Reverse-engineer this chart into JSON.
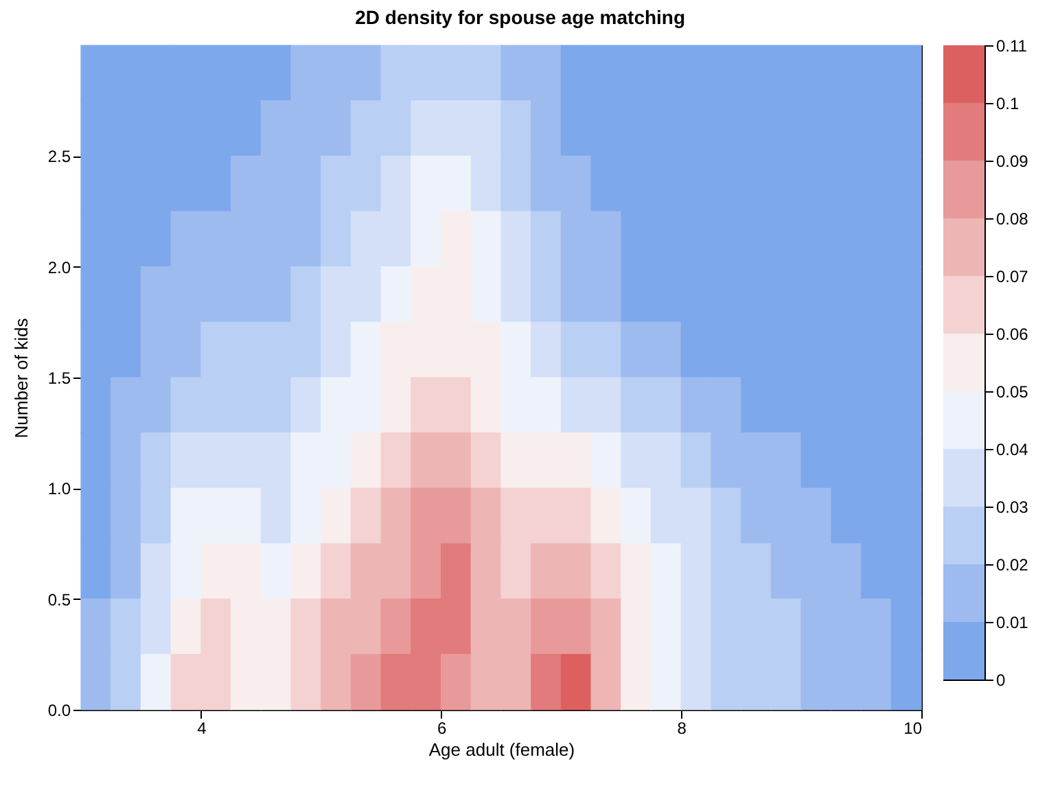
{
  "chart_data": {
    "type": "scatter",
    "marker": "square",
    "title": "2D density for spouse age matching",
    "xlabel": "Age adult (female)",
    "ylabel": "Number of kids",
    "x": [
      3.125,
      3.375,
      3.625,
      3.875,
      4.125,
      4.375,
      4.625,
      4.875,
      5.125,
      5.375,
      5.625,
      5.875,
      6.125,
      6.375,
      6.625,
      6.875,
      7.125,
      7.375,
      7.625,
      7.875,
      8.125,
      8.375,
      8.625,
      8.875,
      9.125,
      9.375,
      9.625,
      9.875,
      3.125,
      3.375,
      3.625,
      3.875,
      4.125,
      4.375,
      4.625,
      4.875,
      5.125,
      5.375,
      5.625,
      5.875,
      6.125,
      6.375,
      6.625,
      6.875,
      7.125,
      7.375,
      7.625,
      7.875,
      8.125,
      8.375,
      8.625,
      8.875,
      9.125,
      9.375,
      9.625,
      9.875,
      3.125,
      3.375,
      3.625,
      3.875,
      4.125,
      4.375,
      4.625,
      4.875,
      5.125,
      5.375,
      5.625,
      5.875,
      6.125,
      6.375,
      6.625,
      6.875,
      7.125,
      7.375,
      7.625,
      7.875,
      8.125,
      8.375,
      8.625,
      8.875,
      9.125,
      9.375,
      9.625,
      9.875,
      3.125,
      3.375,
      3.625,
      3.875,
      4.125,
      4.375,
      4.625,
      4.875,
      5.125,
      5.375,
      5.625,
      5.875,
      6.125,
      6.375,
      6.625,
      6.875,
      7.125,
      7.375,
      7.625,
      7.875,
      8.125,
      8.375,
      8.625,
      8.875,
      9.125,
      9.375,
      9.625,
      9.875,
      3.125,
      3.375,
      3.625,
      3.875,
      4.125,
      4.375,
      4.625,
      4.875,
      5.125,
      5.375,
      5.625,
      5.875,
      6.125,
      6.375,
      6.625,
      6.875,
      7.125,
      7.375,
      7.625,
      7.875,
      8.125,
      8.375,
      8.625,
      8.875,
      9.125,
      9.375,
      9.625,
      9.875,
      3.125,
      3.375,
      3.625,
      3.875,
      4.125,
      4.375,
      4.625,
      4.875,
      5.125,
      5.375,
      5.625,
      5.875,
      6.125,
      6.375,
      6.625,
      6.875,
      7.125,
      7.375,
      7.625,
      7.875,
      8.125,
      8.375,
      8.625,
      8.875,
      9.125,
      9.375,
      9.625,
      9.875,
      3.125,
      3.375,
      3.625,
      3.875,
      4.125,
      4.375,
      4.625,
      4.875,
      5.125,
      5.375,
      5.625,
      5.875,
      6.125,
      6.375,
      6.625,
      6.875,
      7.125,
      7.375,
      7.625,
      7.875,
      8.125,
      8.375,
      8.625,
      8.875,
      9.125,
      9.375,
      9.625,
      9.875,
      3.125,
      3.375,
      3.625,
      3.875,
      4.125,
      4.375,
      4.625,
      4.875,
      5.125,
      5.375,
      5.625,
      5.875,
      6.125,
      6.375,
      6.625,
      6.875,
      7.125,
      7.375,
      7.625,
      7.875,
      8.125,
      8.375,
      8.625,
      8.875,
      9.125,
      9.375,
      9.625,
      9.875,
      3.125,
      3.375,
      3.625,
      3.875,
      4.125,
      4.375,
      4.625,
      4.875,
      5.125,
      5.375,
      5.625,
      5.875,
      6.125,
      6.375,
      6.625,
      6.875,
      7.125,
      7.375,
      7.625,
      7.875,
      8.125,
      8.375,
      8.625,
      8.875,
      9.125,
      9.375,
      9.625,
      9.875,
      3.125,
      3.375,
      3.625,
      3.875,
      4.125,
      4.375,
      4.625,
      4.875,
      5.125,
      5.375,
      5.625,
      5.875,
      6.125,
      6.375,
      6.625,
      6.875,
      7.125,
      7.375,
      7.625,
      7.875,
      8.125,
      8.375,
      8.625,
      8.875,
      9.125,
      9.375,
      9.625,
      9.875,
      3.125,
      3.375,
      3.625,
      3.875,
      4.125,
      4.375,
      4.625,
      4.875,
      5.125,
      5.375,
      5.625,
      5.875,
      6.125,
      6.375,
      6.625,
      6.875,
      7.125,
      7.375,
      7.625,
      7.875,
      8.125,
      8.375,
      8.625,
      8.875,
      9.125,
      9.375,
      9.625,
      9.875,
      3.125,
      3.375,
      3.625,
      3.875,
      4.125,
      4.375,
      4.625,
      4.875,
      5.125,
      5.375,
      5.625,
      5.875,
      6.125,
      6.375,
      6.625,
      6.875,
      7.125,
      7.375,
      7.625,
      7.875,
      8.125,
      8.375,
      8.625,
      8.875,
      9.125,
      9.375,
      9.625,
      9.875
    ],
    "values": [
      2.875,
      2.875,
      2.875,
      2.875,
      2.875,
      2.875,
      2.875,
      2.875,
      2.875,
      2.875,
      2.875,
      2.875,
      2.875,
      2.875,
      2.875,
      2.875,
      2.875,
      2.875,
      2.875,
      2.875,
      2.875,
      2.875,
      2.875,
      2.875,
      2.875,
      2.875,
      2.875,
      2.875,
      2.625,
      2.625,
      2.625,
      2.625,
      2.625,
      2.625,
      2.625,
      2.625,
      2.625,
      2.625,
      2.625,
      2.625,
      2.625,
      2.625,
      2.625,
      2.625,
      2.625,
      2.625,
      2.625,
      2.625,
      2.625,
      2.625,
      2.625,
      2.625,
      2.625,
      2.625,
      2.625,
      2.625,
      2.375,
      2.375,
      2.375,
      2.375,
      2.375,
      2.375,
      2.375,
      2.375,
      2.375,
      2.375,
      2.375,
      2.375,
      2.375,
      2.375,
      2.375,
      2.375,
      2.375,
      2.375,
      2.375,
      2.375,
      2.375,
      2.375,
      2.375,
      2.375,
      2.375,
      2.375,
      2.375,
      2.375,
      2.125,
      2.125,
      2.125,
      2.125,
      2.125,
      2.125,
      2.125,
      2.125,
      2.125,
      2.125,
      2.125,
      2.125,
      2.125,
      2.125,
      2.125,
      2.125,
      2.125,
      2.125,
      2.125,
      2.125,
      2.125,
      2.125,
      2.125,
      2.125,
      2.125,
      2.125,
      2.125,
      2.125,
      1.875,
      1.875,
      1.875,
      1.875,
      1.875,
      1.875,
      1.875,
      1.875,
      1.875,
      1.875,
      1.875,
      1.875,
      1.875,
      1.875,
      1.875,
      1.875,
      1.875,
      1.875,
      1.875,
      1.875,
      1.875,
      1.875,
      1.875,
      1.875,
      1.875,
      1.875,
      1.875,
      1.875,
      1.625,
      1.625,
      1.625,
      1.625,
      1.625,
      1.625,
      1.625,
      1.625,
      1.625,
      1.625,
      1.625,
      1.625,
      1.625,
      1.625,
      1.625,
      1.625,
      1.625,
      1.625,
      1.625,
      1.625,
      1.625,
      1.625,
      1.625,
      1.625,
      1.625,
      1.625,
      1.625,
      1.625,
      1.375,
      1.375,
      1.375,
      1.375,
      1.375,
      1.375,
      1.375,
      1.375,
      1.375,
      1.375,
      1.375,
      1.375,
      1.375,
      1.375,
      1.375,
      1.375,
      1.375,
      1.375,
      1.375,
      1.375,
      1.375,
      1.375,
      1.375,
      1.375,
      1.375,
      1.375,
      1.375,
      1.375,
      1.125,
      1.125,
      1.125,
      1.125,
      1.125,
      1.125,
      1.125,
      1.125,
      1.125,
      1.125,
      1.125,
      1.125,
      1.125,
      1.125,
      1.125,
      1.125,
      1.125,
      1.125,
      1.125,
      1.125,
      1.125,
      1.125,
      1.125,
      1.125,
      1.125,
      1.125,
      1.125,
      1.125,
      0.875,
      0.875,
      0.875,
      0.875,
      0.875,
      0.875,
      0.875,
      0.875,
      0.875,
      0.875,
      0.875,
      0.875,
      0.875,
      0.875,
      0.875,
      0.875,
      0.875,
      0.875,
      0.875,
      0.875,
      0.875,
      0.875,
      0.875,
      0.875,
      0.875,
      0.875,
      0.875,
      0.875,
      0.625,
      0.625,
      0.625,
      0.625,
      0.625,
      0.625,
      0.625,
      0.625,
      0.625,
      0.625,
      0.625,
      0.625,
      0.625,
      0.625,
      0.625,
      0.625,
      0.625,
      0.625,
      0.625,
      0.625,
      0.625,
      0.625,
      0.625,
      0.625,
      0.625,
      0.625,
      0.625,
      0.625,
      0.375,
      0.375,
      0.375,
      0.375,
      0.375,
      0.375,
      0.375,
      0.375,
      0.375,
      0.375,
      0.375,
      0.375,
      0.375,
      0.375,
      0.375,
      0.375,
      0.375,
      0.375,
      0.375,
      0.375,
      0.375,
      0.375,
      0.375,
      0.375,
      0.375,
      0.375,
      0.375,
      0.375,
      0.125,
      0.125,
      0.125,
      0.125,
      0.125,
      0.125,
      0.125,
      0.125,
      0.125,
      0.125,
      0.125,
      0.125,
      0.125,
      0.125,
      0.125,
      0.125,
      0.125,
      0.125,
      0.125,
      0.125,
      0.125,
      0.125,
      0.125,
      0.125,
      0.125,
      0.125,
      0.125,
      0.125
    ],
    "cvalues": [
      0.005,
      0.005,
      0.005,
      0.005,
      0.005,
      0.005,
      0.005,
      0.015,
      0.015,
      0.015,
      0.025,
      0.025,
      0.025,
      0.025,
      0.015,
      0.015,
      0.005,
      0.005,
      0.005,
      0.005,
      0.005,
      0.005,
      0.005,
      0.005,
      0.005,
      0.005,
      0.005,
      0.005,
      0.005,
      0.005,
      0.005,
      0.005,
      0.005,
      0.005,
      0.015,
      0.015,
      0.015,
      0.025,
      0.025,
      0.035,
      0.035,
      0.035,
      0.025,
      0.015,
      0.005,
      0.005,
      0.005,
      0.005,
      0.005,
      0.005,
      0.005,
      0.005,
      0.005,
      0.005,
      0.005,
      0.005,
      0.005,
      0.005,
      0.005,
      0.005,
      0.005,
      0.015,
      0.015,
      0.015,
      0.025,
      0.025,
      0.035,
      0.045,
      0.045,
      0.035,
      0.025,
      0.015,
      0.015,
      0.005,
      0.005,
      0.005,
      0.005,
      0.005,
      0.005,
      0.005,
      0.005,
      0.005,
      0.005,
      0.005,
      0.005,
      0.005,
      0.005,
      0.015,
      0.015,
      0.015,
      0.015,
      0.015,
      0.025,
      0.035,
      0.035,
      0.045,
      0.055,
      0.045,
      0.035,
      0.025,
      0.015,
      0.015,
      0.005,
      0.005,
      0.005,
      0.005,
      0.005,
      0.005,
      0.005,
      0.005,
      0.005,
      0.005,
      0.005,
      0.005,
      0.015,
      0.015,
      0.015,
      0.015,
      0.015,
      0.025,
      0.035,
      0.035,
      0.045,
      0.055,
      0.055,
      0.045,
      0.035,
      0.025,
      0.015,
      0.015,
      0.005,
      0.005,
      0.005,
      0.005,
      0.005,
      0.005,
      0.005,
      0.005,
      0.005,
      0.005,
      0.005,
      0.005,
      0.015,
      0.015,
      0.025,
      0.025,
      0.025,
      0.025,
      0.035,
      0.045,
      0.055,
      0.055,
      0.055,
      0.055,
      0.045,
      0.035,
      0.025,
      0.025,
      0.015,
      0.015,
      0.005,
      0.005,
      0.005,
      0.005,
      0.005,
      0.005,
      0.005,
      0.005,
      0.005,
      0.015,
      0.015,
      0.025,
      0.025,
      0.025,
      0.025,
      0.035,
      0.045,
      0.045,
      0.055,
      0.065,
      0.065,
      0.055,
      0.045,
      0.045,
      0.035,
      0.035,
      0.025,
      0.025,
      0.015,
      0.015,
      0.005,
      0.005,
      0.005,
      0.005,
      0.005,
      0.005,
      0.005,
      0.015,
      0.025,
      0.035,
      0.035,
      0.035,
      0.035,
      0.045,
      0.045,
      0.055,
      0.065,
      0.075,
      0.075,
      0.065,
      0.055,
      0.055,
      0.055,
      0.045,
      0.035,
      0.035,
      0.025,
      0.015,
      0.015,
      0.015,
      0.005,
      0.005,
      0.005,
      0.005,
      0.005,
      0.015,
      0.025,
      0.045,
      0.045,
      0.045,
      0.035,
      0.045,
      0.055,
      0.065,
      0.075,
      0.085,
      0.085,
      0.075,
      0.065,
      0.065,
      0.065,
      0.055,
      0.045,
      0.035,
      0.035,
      0.025,
      0.015,
      0.015,
      0.015,
      0.005,
      0.005,
      0.005,
      0.005,
      0.015,
      0.035,
      0.045,
      0.055,
      0.055,
      0.045,
      0.055,
      0.065,
      0.075,
      0.075,
      0.085,
      0.095,
      0.075,
      0.065,
      0.075,
      0.075,
      0.065,
      0.055,
      0.045,
      0.035,
      0.025,
      0.025,
      0.015,
      0.015,
      0.015,
      0.005,
      0.005,
      0.015,
      0.025,
      0.035,
      0.055,
      0.065,
      0.055,
      0.055,
      0.065,
      0.075,
      0.075,
      0.085,
      0.095,
      0.095,
      0.075,
      0.075,
      0.085,
      0.085,
      0.075,
      0.055,
      0.045,
      0.035,
      0.025,
      0.025,
      0.025,
      0.015,
      0.015,
      0.015,
      0.005,
      0.015,
      0.025,
      0.045,
      0.065,
      0.065,
      0.055,
      0.055,
      0.065,
      0.075,
      0.085,
      0.095,
      0.095,
      0.085,
      0.075,
      0.075,
      0.095,
      0.105,
      0.075,
      0.055,
      0.045,
      0.035,
      0.025,
      0.025,
      0.025,
      0.015,
      0.015,
      0.015,
      0.005
    ],
    "xlim": [
      3,
      10
    ],
    "xticks": [
      4,
      6,
      8,
      10
    ],
    "ylim": [
      0,
      3
    ],
    "yticks": [
      {
        "value": 0,
        "label": "0.0"
      },
      {
        "value": 0.5,
        "label": "0.5"
      },
      {
        "value": 1,
        "label": "1.0"
      },
      {
        "value": 1.5,
        "label": "1.5"
      },
      {
        "value": 2,
        "label": "2.0"
      },
      {
        "value": 2.5,
        "label": "2.5"
      }
    ],
    "clim": [
      0,
      0.11
    ],
    "cticks": [
      0,
      0.01,
      0.02,
      0.03,
      0.04,
      0.05,
      0.06,
      0.07,
      0.08,
      0.09,
      0.1,
      0.11
    ],
    "colors": [
      "#7ea8ec",
      "#7ea8ec",
      "#7ea8ec",
      "#7ea8ec",
      "#7ea8ec",
      "#7ea8ec",
      "#7ea8ec",
      "#9dbbef",
      "#9dbbef",
      "#9dbbef",
      "#b9cff3",
      "#b9cff3",
      "#b9cff3",
      "#b9cff3",
      "#9dbbef",
      "#9dbbef",
      "#7ea8ec",
      "#7ea8ec",
      "#7ea8ec",
      "#7ea8ec",
      "#7ea8ec",
      "#7ea8ec",
      "#7ea8ec",
      "#7ea8ec",
      "#7ea8ec",
      "#7ea8ec",
      "#7ea8ec",
      "#7ea8ec",
      "#7ea8ec",
      "#7ea8ec",
      "#7ea8ec",
      "#7ea8ec",
      "#7ea8ec",
      "#7ea8ec",
      "#9dbbef",
      "#9dbbef",
      "#9dbbef",
      "#b9cff3",
      "#b9cff3",
      "#d3e0f7",
      "#d3e0f7",
      "#d3e0f7",
      "#b9cff3",
      "#9dbbef",
      "#7ea8ec",
      "#7ea8ec",
      "#7ea8ec",
      "#7ea8ec",
      "#7ea8ec",
      "#7ea8ec",
      "#7ea8ec",
      "#7ea8ec",
      "#7ea8ec",
      "#7ea8ec",
      "#7ea8ec",
      "#7ea8ec",
      "#7ea8ec",
      "#7ea8ec",
      "#7ea8ec",
      "#7ea8ec",
      "#7ea8ec",
      "#9dbbef",
      "#9dbbef",
      "#9dbbef",
      "#b9cff3",
      "#b9cff3",
      "#d3e0f7",
      "#eef3fb",
      "#eef3fb",
      "#d3e0f7",
      "#b9cff3",
      "#9dbbef",
      "#9dbbef",
      "#7ea8ec",
      "#7ea8ec",
      "#7ea8ec",
      "#7ea8ec",
      "#7ea8ec",
      "#7ea8ec",
      "#7ea8ec",
      "#7ea8ec",
      "#7ea8ec",
      "#7ea8ec",
      "#7ea8ec",
      "#7ea8ec",
      "#7ea8ec",
      "#7ea8ec",
      "#9dbbef",
      "#9dbbef",
      "#9dbbef",
      "#9dbbef",
      "#9dbbef",
      "#b9cff3",
      "#d3e0f7",
      "#d3e0f7",
      "#eef3fb",
      "#f8eeee",
      "#eef3fb",
      "#d3e0f7",
      "#b9cff3",
      "#9dbbef",
      "#9dbbef",
      "#7ea8ec",
      "#7ea8ec",
      "#7ea8ec",
      "#7ea8ec",
      "#7ea8ec",
      "#7ea8ec",
      "#7ea8ec",
      "#7ea8ec",
      "#7ea8ec",
      "#7ea8ec",
      "#7ea8ec",
      "#7ea8ec",
      "#9dbbef",
      "#9dbbef",
      "#9dbbef",
      "#9dbbef",
      "#9dbbef",
      "#b9cff3",
      "#d3e0f7",
      "#d3e0f7",
      "#eef3fb",
      "#f8eeee",
      "#f8eeee",
      "#eef3fb",
      "#d3e0f7",
      "#b9cff3",
      "#9dbbef",
      "#9dbbef",
      "#7ea8ec",
      "#7ea8ec",
      "#7ea8ec",
      "#7ea8ec",
      "#7ea8ec",
      "#7ea8ec",
      "#7ea8ec",
      "#7ea8ec",
      "#7ea8ec",
      "#7ea8ec",
      "#7ea8ec",
      "#7ea8ec",
      "#9dbbef",
      "#9dbbef",
      "#b9cff3",
      "#b9cff3",
      "#b9cff3",
      "#b9cff3",
      "#d3e0f7",
      "#eef3fb",
      "#f8eeee",
      "#f8eeee",
      "#f8eeee",
      "#f8eeee",
      "#eef3fb",
      "#d3e0f7",
      "#b9cff3",
      "#b9cff3",
      "#9dbbef",
      "#9dbbef",
      "#7ea8ec",
      "#7ea8ec",
      "#7ea8ec",
      "#7ea8ec",
      "#7ea8ec",
      "#7ea8ec",
      "#7ea8ec",
      "#7ea8ec",
      "#7ea8ec",
      "#9dbbef",
      "#9dbbef",
      "#b9cff3",
      "#b9cff3",
      "#b9cff3",
      "#b9cff3",
      "#d3e0f7",
      "#eef3fb",
      "#eef3fb",
      "#f8eeee",
      "#f4d2d2",
      "#f4d2d2",
      "#f8eeee",
      "#eef3fb",
      "#eef3fb",
      "#d3e0f7",
      "#d3e0f7",
      "#b9cff3",
      "#b9cff3",
      "#9dbbef",
      "#9dbbef",
      "#7ea8ec",
      "#7ea8ec",
      "#7ea8ec",
      "#7ea8ec",
      "#7ea8ec",
      "#7ea8ec",
      "#7ea8ec",
      "#9dbbef",
      "#b9cff3",
      "#d3e0f7",
      "#d3e0f7",
      "#d3e0f7",
      "#d3e0f7",
      "#eef3fb",
      "#eef3fb",
      "#f8eeee",
      "#f4d2d2",
      "#eeb5b5",
      "#eeb5b5",
      "#f4d2d2",
      "#f8eeee",
      "#f8eeee",
      "#f8eeee",
      "#eef3fb",
      "#d3e0f7",
      "#d3e0f7",
      "#b9cff3",
      "#9dbbef",
      "#9dbbef",
      "#9dbbef",
      "#7ea8ec",
      "#7ea8ec",
      "#7ea8ec",
      "#7ea8ec",
      "#7ea8ec",
      "#9dbbef",
      "#b9cff3",
      "#eef3fb",
      "#eef3fb",
      "#eef3fb",
      "#d3e0f7",
      "#eef3fb",
      "#f8eeee",
      "#f4d2d2",
      "#eeb5b5",
      "#e89a9a",
      "#e89a9a",
      "#eeb5b5",
      "#f4d2d2",
      "#f4d2d2",
      "#f4d2d2",
      "#f8eeee",
      "#eef3fb",
      "#d3e0f7",
      "#d3e0f7",
      "#b9cff3",
      "#9dbbef",
      "#9dbbef",
      "#9dbbef",
      "#7ea8ec",
      "#7ea8ec",
      "#7ea8ec",
      "#7ea8ec",
      "#9dbbef",
      "#d3e0f7",
      "#eef3fb",
      "#f8eeee",
      "#f8eeee",
      "#eef3fb",
      "#f8eeee",
      "#f4d2d2",
      "#eeb5b5",
      "#eeb5b5",
      "#e89a9a",
      "#e27b7b",
      "#eeb5b5",
      "#f4d2d2",
      "#eeb5b5",
      "#eeb5b5",
      "#f4d2d2",
      "#f8eeee",
      "#eef3fb",
      "#d3e0f7",
      "#b9cff3",
      "#b9cff3",
      "#9dbbef",
      "#9dbbef",
      "#9dbbef",
      "#7ea8ec",
      "#7ea8ec",
      "#9dbbef",
      "#b9cff3",
      "#d3e0f7",
      "#f8eeee",
      "#f4d2d2",
      "#f8eeee",
      "#f8eeee",
      "#f4d2d2",
      "#eeb5b5",
      "#eeb5b5",
      "#e89a9a",
      "#e27b7b",
      "#e27b7b",
      "#eeb5b5",
      "#eeb5b5",
      "#e89a9a",
      "#e89a9a",
      "#eeb5b5",
      "#f8eeee",
      "#eef3fb",
      "#d3e0f7",
      "#b9cff3",
      "#b9cff3",
      "#b9cff3",
      "#9dbbef",
      "#9dbbef",
      "#9dbbef",
      "#7ea8ec",
      "#9dbbef",
      "#b9cff3",
      "#eef3fb",
      "#f4d2d2",
      "#f4d2d2",
      "#f8eeee",
      "#f8eeee",
      "#f4d2d2",
      "#eeb5b5",
      "#e89a9a",
      "#e27b7b",
      "#e27b7b",
      "#e89a9a",
      "#eeb5b5",
      "#eeb5b5",
      "#e27b7b",
      "#dc6060",
      "#eeb5b5",
      "#f8eeee",
      "#eef3fb",
      "#d3e0f7",
      "#b9cff3",
      "#b9cff3",
      "#b9cff3",
      "#9dbbef",
      "#9dbbef",
      "#9dbbef",
      "#7ea8ec"
    ]
  }
}
